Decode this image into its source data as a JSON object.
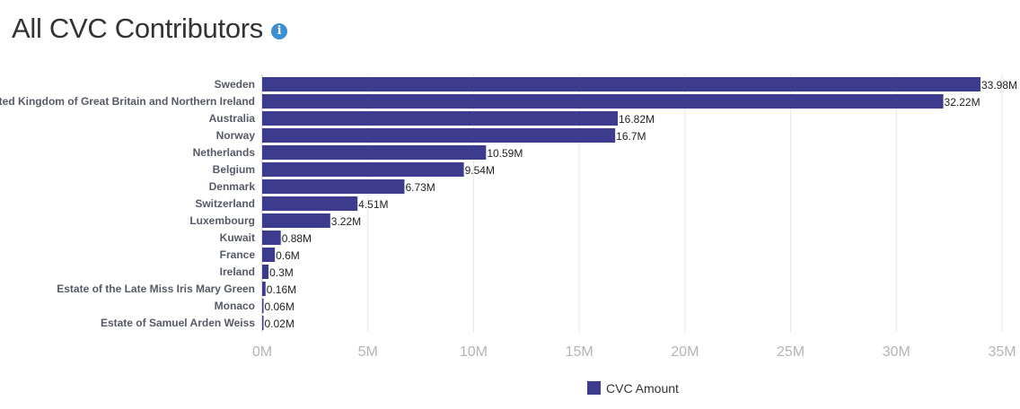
{
  "header": {
    "title": "All CVC Contributors",
    "info_icon": "info-icon"
  },
  "chart_data": {
    "type": "bar",
    "orientation": "horizontal",
    "categories": [
      "Sweden",
      "United Kingdom of Great Britain and Northern Ireland",
      "Australia",
      "Norway",
      "Netherlands",
      "Belgium",
      "Denmark",
      "Switzerland",
      "Luxembourg",
      "Kuwait",
      "France",
      "Ireland",
      "Estate of the Late Miss Iris Mary Green",
      "Monaco",
      "Estate of Samuel Arden Weiss"
    ],
    "series": [
      {
        "name": "CVC Amount",
        "values": [
          33.98,
          32.22,
          16.82,
          16.7,
          10.59,
          9.54,
          6.73,
          4.51,
          3.22,
          0.88,
          0.6,
          0.3,
          0.16,
          0.06,
          0.02
        ],
        "labels": [
          "33.98M",
          "32.22M",
          "16.82M",
          "16.7M",
          "10.59M",
          "9.54M",
          "6.73M",
          "4.51M",
          "3.22M",
          "0.88M",
          "0.6M",
          "0.3M",
          "0.16M",
          "0.06M",
          "0.02M"
        ],
        "color": "#3c3b8e"
      }
    ],
    "xlim": [
      0,
      35
    ],
    "xticks": [
      0,
      5,
      10,
      15,
      20,
      25,
      30,
      35
    ],
    "xtick_labels": [
      "0M",
      "5M",
      "10M",
      "15M",
      "20M",
      "25M",
      "30M",
      "35M"
    ],
    "grid": true,
    "legend": "bottom-center",
    "gridline_color": "#e6e6e6"
  }
}
